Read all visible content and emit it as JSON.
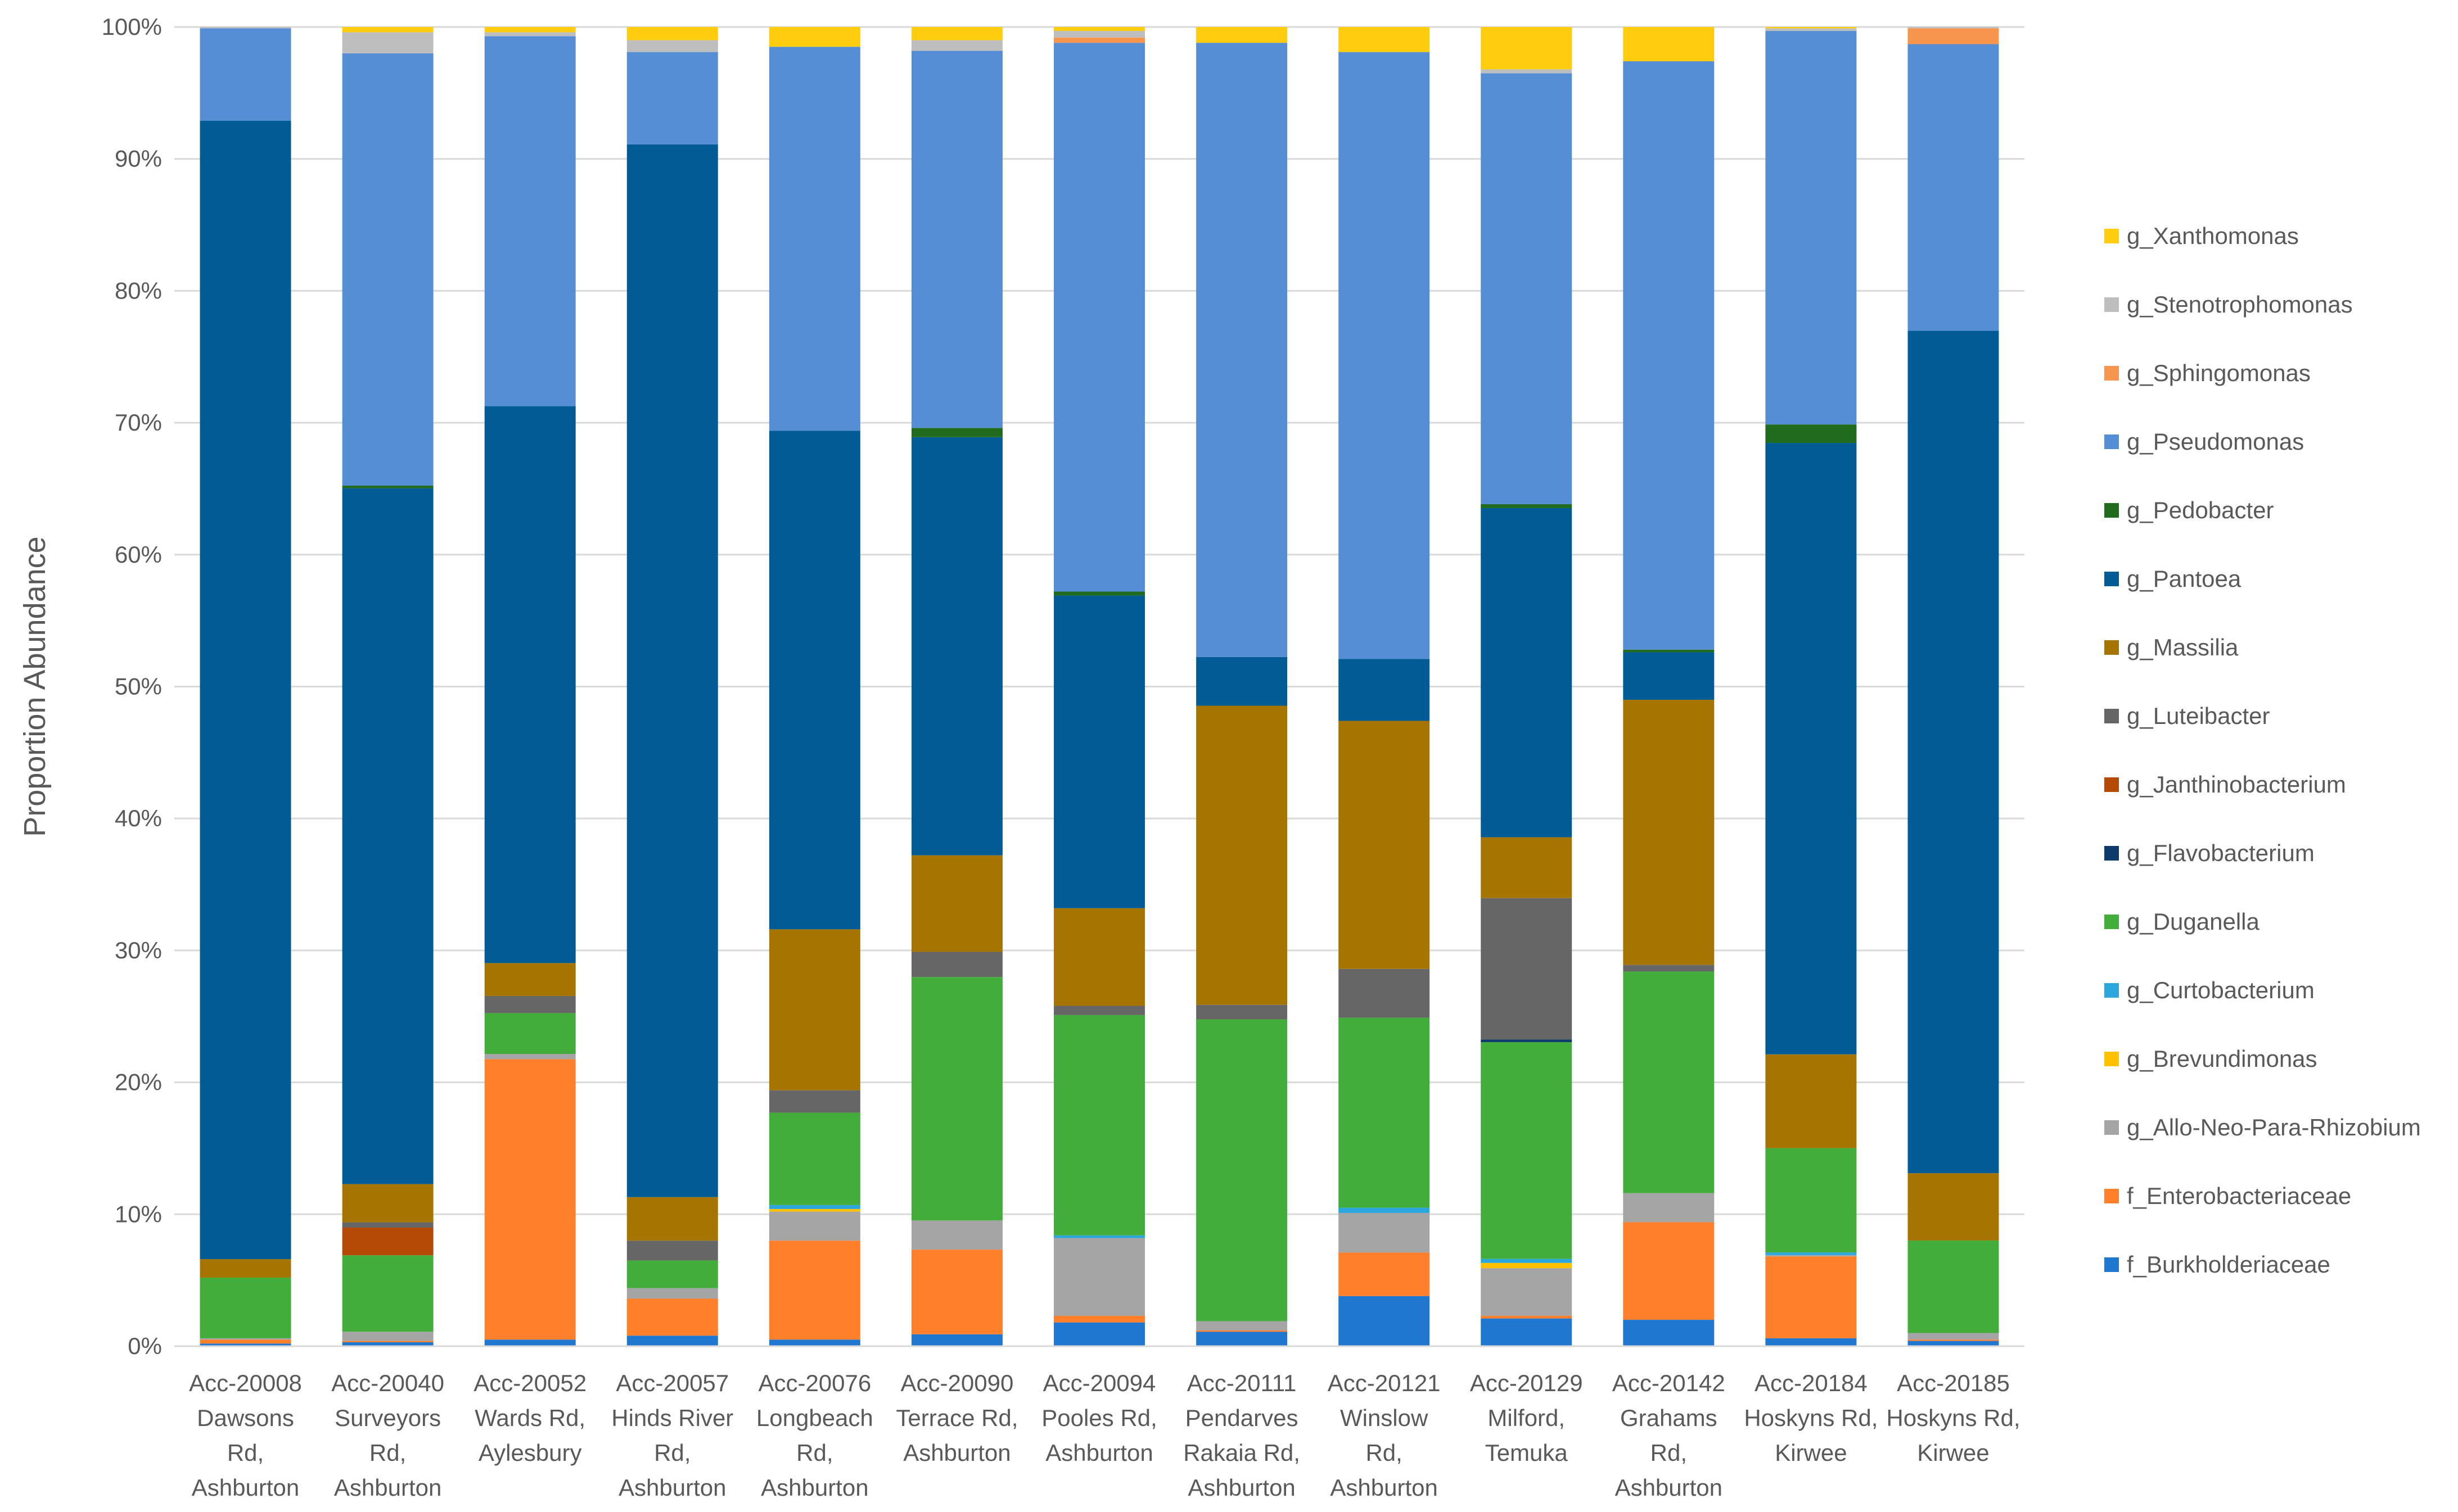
{
  "chart_data": {
    "type": "bar",
    "stacked": true,
    "title": "",
    "xlabel": "",
    "ylabel": "Proportion Abundance",
    "ylim": [
      0,
      100
    ],
    "yticks": [
      "0%",
      "10%",
      "20%",
      "30%",
      "40%",
      "50%",
      "60%",
      "70%",
      "80%",
      "90%",
      "100%"
    ],
    "legend_position": "right",
    "categories": [
      [
        "Acc-20008",
        "Dawsons",
        "Rd,",
        "Ashburton"
      ],
      [
        "Acc-20040",
        "Surveyors",
        "Rd,",
        "Ashburton"
      ],
      [
        "Acc-20052",
        "Wards Rd,",
        "Aylesbury"
      ],
      [
        "Acc-20057",
        "Hinds River",
        "Rd,",
        "Ashburton"
      ],
      [
        "Acc-20076",
        "Longbeach",
        "Rd,",
        "Ashburton"
      ],
      [
        "Acc-20090",
        "Terrace Rd,",
        "Ashburton"
      ],
      [
        "Acc-20094",
        "Pooles Rd,",
        "Ashburton"
      ],
      [
        "Acc-20111",
        "Pendarves",
        "Rakaia Rd,",
        "Ashburton"
      ],
      [
        "Acc-20121",
        "Winslow",
        "Rd,",
        "Ashburton"
      ],
      [
        "Acc-20129",
        "Milford,",
        "Temuka"
      ],
      [
        "Acc-20142",
        "Grahams",
        "Rd,",
        "Ashburton"
      ],
      [
        "Acc-20184",
        "Hoskyns Rd,",
        "Kirwee"
      ],
      [
        "Acc-20185",
        "Hoskyns Rd,",
        "Kirwee"
      ]
    ],
    "series": [
      {
        "name": "f_Burkholderiaceae",
        "color": "#1F77D0",
        "values": [
          0.2,
          0.3,
          0.5,
          0.8,
          0.5,
          0.9,
          1.8,
          1.1,
          3.8,
          2.1,
          2.0,
          0.6,
          0.4
        ]
      },
      {
        "name": "f_Enterobacteriaceae",
        "color": "#FF7F2A",
        "values": [
          0.3,
          0.1,
          21.3,
          2.8,
          7.5,
          6.4,
          0.5,
          0.1,
          3.3,
          0.2,
          7.4,
          6.2,
          0.1
        ]
      },
      {
        "name": "g_Allo-Neo-Para-Rhizobium",
        "color": "#A5A5A5",
        "values": [
          0.1,
          0.7,
          0.4,
          0.8,
          2.2,
          2.2,
          5.9,
          0.7,
          3.0,
          3.6,
          2.2,
          0.1,
          0.5
        ]
      },
      {
        "name": "g_Brevundimonas",
        "color": "#FFC000",
        "values": [
          0.0,
          0.0,
          0.0,
          0.0,
          0.2,
          0.0,
          0.0,
          0.0,
          0.0,
          0.4,
          0.0,
          0.0,
          0.0
        ]
      },
      {
        "name": "g_Curtobacterium",
        "color": "#2BA7DE",
        "values": [
          0.0,
          0.0,
          0.0,
          0.0,
          0.3,
          0.0,
          0.2,
          0.0,
          0.4,
          0.3,
          0.0,
          0.2,
          0.0
        ]
      },
      {
        "name": "g_Duganella",
        "color": "#43AD3C",
        "values": [
          4.6,
          5.8,
          3.1,
          2.1,
          7.0,
          18.4,
          16.7,
          22.9,
          14.4,
          16.4,
          16.8,
          7.9,
          7.0
        ]
      },
      {
        "name": "g_Flavobacterium",
        "color": "#0E3A6B",
        "values": [
          0.0,
          0.0,
          0.0,
          0.0,
          0.0,
          0.0,
          0.0,
          0.0,
          0.0,
          0.2,
          0.0,
          0.0,
          0.0
        ]
      },
      {
        "name": "g_Janthinobacterium",
        "color": "#B44A06",
        "values": [
          0.0,
          2.1,
          0.0,
          0.0,
          0.0,
          0.0,
          0.0,
          0.0,
          0.0,
          0.0,
          0.0,
          0.0,
          0.0
        ]
      },
      {
        "name": "g_Luteibacter",
        "color": "#666666",
        "values": [
          0.0,
          0.4,
          1.3,
          1.5,
          1.7,
          1.9,
          0.7,
          1.1,
          3.7,
          10.7,
          0.5,
          0.0,
          0.0
        ]
      },
      {
        "name": "g_Massilia",
        "color": "#A67400",
        "values": [
          1.4,
          2.9,
          2.5,
          3.3,
          12.2,
          7.3,
          7.4,
          22.7,
          18.8,
          4.6,
          20.1,
          7.1,
          5.1
        ]
      },
      {
        "name": "g_Pantoea",
        "color": "#015C96",
        "values": [
          86.3,
          52.8,
          42.3,
          79.8,
          37.8,
          31.6,
          23.7,
          3.7,
          4.7,
          24.9,
          3.6,
          46.3,
          63.8
        ]
      },
      {
        "name": "g_Pedobacter",
        "color": "#206B1E",
        "values": [
          0.0,
          0.2,
          0.0,
          0.0,
          0.0,
          0.7,
          0.3,
          0.0,
          0.0,
          0.3,
          0.2,
          1.4,
          0.0
        ]
      },
      {
        "name": "g_Pseudomonas",
        "color": "#558ED5",
        "values": [
          7.0,
          32.8,
          28.1,
          7.0,
          29.1,
          28.5,
          41.6,
          46.6,
          46.0,
          32.6,
          44.6,
          29.8,
          21.7
        ]
      },
      {
        "name": "g_Sphingomonas",
        "color": "#F7954F",
        "values": [
          0.0,
          0.0,
          0.0,
          0.0,
          0.0,
          0.0,
          0.4,
          0.0,
          0.0,
          0.0,
          0.0,
          0.0,
          1.2
        ]
      },
      {
        "name": "g_Stenotrophomonas",
        "color": "#BEBEBE",
        "values": [
          0.1,
          1.6,
          0.3,
          0.9,
          0.0,
          0.8,
          0.5,
          0.0,
          0.0,
          0.3,
          0.0,
          0.2,
          0.1
        ]
      },
      {
        "name": "g_Xanthomonas",
        "color": "#FFCD0D",
        "values": [
          0.0,
          0.4,
          0.4,
          1.0,
          1.5,
          1.0,
          0.3,
          1.2,
          1.9,
          3.2,
          2.6,
          0.1,
          0.0
        ]
      }
    ],
    "legend_order": [
      "g_Xanthomonas",
      "g_Stenotrophomonas",
      "g_Sphingomonas",
      "g_Pseudomonas",
      "g_Pedobacter",
      "g_Pantoea",
      "g_Massilia",
      "g_Luteibacter",
      "g_Janthinobacterium",
      "g_Flavobacterium",
      "g_Duganella",
      "g_Curtobacterium",
      "g_Brevundimonas",
      "g_Allo-Neo-Para-Rhizobium",
      "f_Enterobacteriaceae",
      "f_Burkholderiaceae"
    ]
  }
}
